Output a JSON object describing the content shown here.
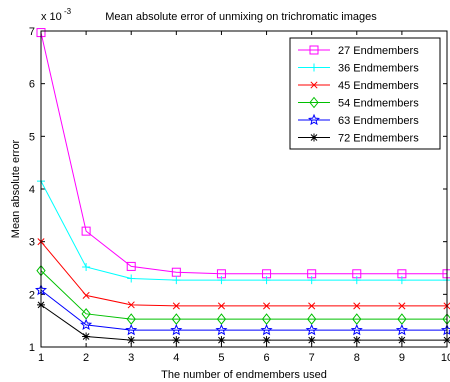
{
  "chart_data": {
    "type": "line",
    "title": "Mean absolute error of unmixing on trichromatic images",
    "xlabel": "The number of endmembers used",
    "ylabel": "Mean absolute error",
    "exponent_label": "x 10",
    "exponent_power": "-3",
    "x": [
      1,
      2,
      3,
      4,
      5,
      6,
      7,
      8,
      9,
      10
    ],
    "xlim": [
      1,
      10
    ],
    "ylim": [
      1,
      7
    ],
    "x_ticks": [
      "1",
      "2",
      "3",
      "4",
      "5",
      "6",
      "7",
      "8",
      "9",
      "10"
    ],
    "y_ticks": [
      "1",
      "2",
      "3",
      "4",
      "5",
      "6",
      "7"
    ],
    "grid": false,
    "legend_position": "top-right",
    "series": [
      {
        "name": "27 Endmembers",
        "color": "#ff00ff",
        "marker": "square",
        "values": [
          6.97,
          3.2,
          2.53,
          2.42,
          2.39,
          2.39,
          2.39,
          2.39,
          2.39,
          2.39
        ]
      },
      {
        "name": "36 Endmembers",
        "color": "#00ffff",
        "marker": "plus",
        "values": [
          4.15,
          2.52,
          2.3,
          2.27,
          2.27,
          2.27,
          2.27,
          2.27,
          2.27,
          2.27
        ]
      },
      {
        "name": "45 Endmembers",
        "color": "#ff0000",
        "marker": "x",
        "values": [
          3.0,
          1.98,
          1.8,
          1.78,
          1.78,
          1.78,
          1.78,
          1.78,
          1.78,
          1.78
        ]
      },
      {
        "name": "54 Endmembers",
        "color": "#00c000",
        "marker": "diamond",
        "values": [
          2.45,
          1.63,
          1.53,
          1.53,
          1.53,
          1.53,
          1.53,
          1.53,
          1.53,
          1.53
        ]
      },
      {
        "name": "63 Endmembers",
        "color": "#0000ff",
        "marker": "star",
        "values": [
          2.08,
          1.42,
          1.32,
          1.32,
          1.32,
          1.32,
          1.32,
          1.32,
          1.32,
          1.32
        ]
      },
      {
        "name": "72 Endmembers",
        "color": "#000000",
        "marker": "asterisk",
        "values": [
          1.8,
          1.2,
          1.13,
          1.13,
          1.13,
          1.13,
          1.13,
          1.13,
          1.13,
          1.13
        ]
      }
    ]
  }
}
